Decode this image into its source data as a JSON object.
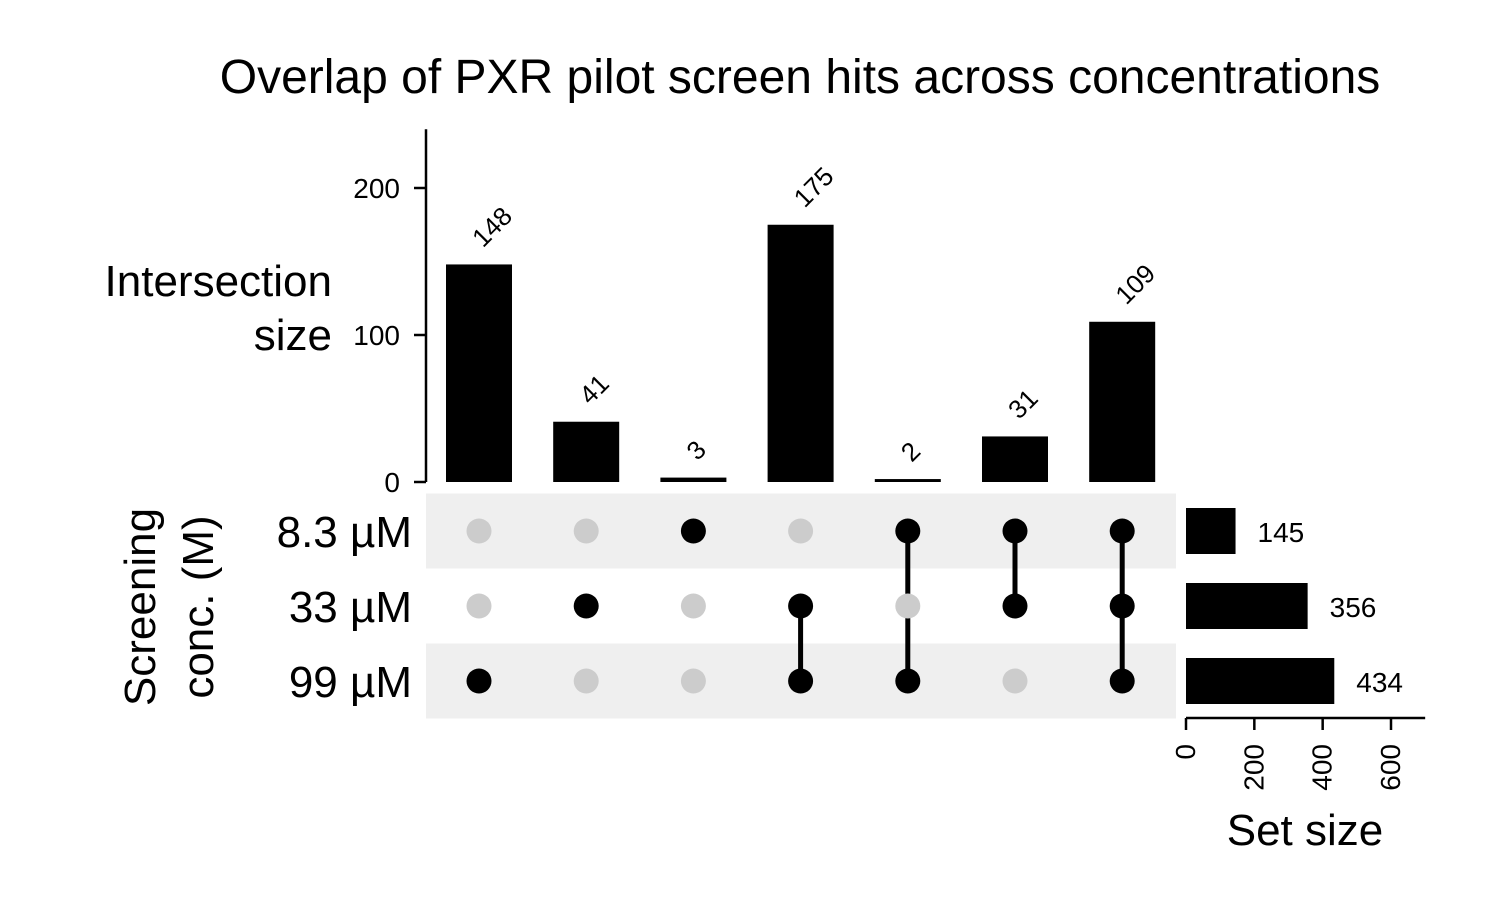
{
  "chart_data": {
    "type": "upset",
    "title": "Overlap of PXR pilot screen hits across concentrations",
    "intersection_axis": {
      "label_lines": [
        "Intersection",
        "size"
      ],
      "ylim": [
        0,
        240
      ],
      "ticks": [
        0,
        100,
        200
      ]
    },
    "sets": [
      {
        "name": "8.3 µM",
        "size": 145
      },
      {
        "name": "33 µM",
        "size": 356
      },
      {
        "name": "99 µM",
        "size": 434
      }
    ],
    "set_axis_label_lines": [
      "Screening",
      "conc. (M)"
    ],
    "set_size_axis": {
      "label": "Set size",
      "xlim": [
        0,
        700
      ],
      "ticks": [
        0,
        200,
        400,
        600
      ]
    },
    "intersections": [
      {
        "members": [
          "99 µM"
        ],
        "size": 148
      },
      {
        "members": [
          "33 µM"
        ],
        "size": 41
      },
      {
        "members": [
          "8.3 µM"
        ],
        "size": 3
      },
      {
        "members": [
          "33 µM",
          "99 µM"
        ],
        "size": 175
      },
      {
        "members": [
          "8.3 µM",
          "99 µM"
        ],
        "size": 2
      },
      {
        "members": [
          "8.3 µM",
          "33 µM"
        ],
        "size": 31
      },
      {
        "members": [
          "8.3 µM",
          "33 µM",
          "99 µM"
        ],
        "size": 109
      }
    ],
    "colors": {
      "bar": "#000000",
      "dot_active": "#000000",
      "dot_inactive": "#cccccc",
      "stripe": "#efefef"
    }
  }
}
